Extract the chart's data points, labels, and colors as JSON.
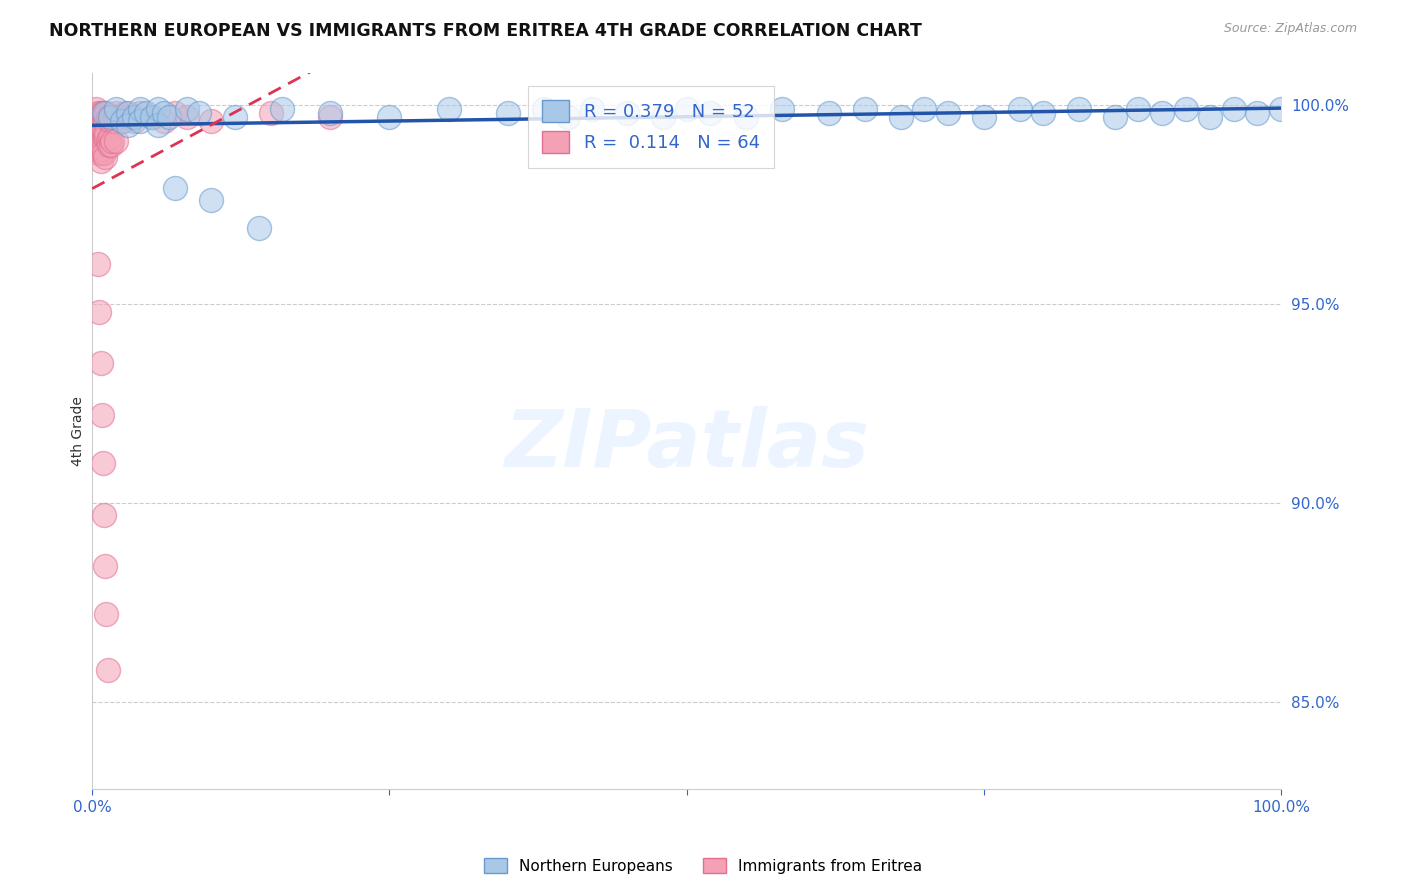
{
  "title": "NORTHERN EUROPEAN VS IMMIGRANTS FROM ERITREA 4TH GRADE CORRELATION CHART",
  "source": "Source: ZipAtlas.com",
  "ylabel": "4th Grade",
  "xlim": [
    0.0,
    1.0
  ],
  "ylim": [
    0.828,
    1.008
  ],
  "yticks": [
    0.85,
    0.9,
    0.95,
    1.0
  ],
  "ytick_labels": [
    "85.0%",
    "90.0%",
    "95.0%",
    "100.0%"
  ],
  "xticks": [
    0.0,
    0.25,
    0.5,
    0.75,
    1.0
  ],
  "xtick_labels": [
    "0.0%",
    "",
    "",
    "",
    "100.0%"
  ],
  "blue_R": 0.379,
  "blue_N": 52,
  "pink_R": 0.114,
  "pink_N": 64,
  "blue_color": "#A8C8E8",
  "pink_color": "#F4A0B5",
  "blue_edge_color": "#6699CC",
  "pink_edge_color": "#E07090",
  "blue_line_color": "#2255AA",
  "pink_line_color": "#DD3355",
  "legend1_label": "Northern Europeans",
  "legend2_label": "Immigrants from Eritrea",
  "watermark_text": "ZIPatlas",
  "blue_x": [
    0.01,
    0.015,
    0.02,
    0.025,
    0.03,
    0.03,
    0.035,
    0.04,
    0.04,
    0.045,
    0.05,
    0.055,
    0.055,
    0.06,
    0.065,
    0.07,
    0.08,
    0.09,
    0.1,
    0.12,
    0.14,
    0.16,
    0.2,
    0.25,
    0.3,
    0.35,
    0.38,
    0.4,
    0.42,
    0.45,
    0.48,
    0.5,
    0.52,
    0.55,
    0.58,
    0.62,
    0.65,
    0.68,
    0.7,
    0.72,
    0.75,
    0.78,
    0.8,
    0.83,
    0.86,
    0.88,
    0.9,
    0.92,
    0.94,
    0.96,
    0.98,
    1.0
  ],
  "blue_y": [
    0.998,
    0.997,
    0.999,
    0.996,
    0.998,
    0.995,
    0.997,
    0.999,
    0.996,
    0.998,
    0.997,
    0.999,
    0.995,
    0.998,
    0.997,
    0.979,
    0.999,
    0.998,
    0.976,
    0.997,
    0.969,
    0.999,
    0.998,
    0.997,
    0.999,
    0.998,
    0.999,
    0.997,
    0.999,
    0.998,
    0.997,
    0.999,
    0.998,
    0.997,
    0.999,
    0.998,
    0.999,
    0.997,
    0.999,
    0.998,
    0.997,
    0.999,
    0.998,
    0.999,
    0.997,
    0.999,
    0.998,
    0.999,
    0.997,
    0.999,
    0.998,
    0.999
  ],
  "pink_x": [
    0.003,
    0.004,
    0.004,
    0.005,
    0.005,
    0.005,
    0.005,
    0.006,
    0.006,
    0.006,
    0.007,
    0.007,
    0.007,
    0.007,
    0.008,
    0.008,
    0.008,
    0.009,
    0.009,
    0.009,
    0.01,
    0.01,
    0.01,
    0.011,
    0.011,
    0.011,
    0.012,
    0.012,
    0.013,
    0.013,
    0.014,
    0.014,
    0.015,
    0.015,
    0.016,
    0.016,
    0.017,
    0.017,
    0.018,
    0.019,
    0.02,
    0.02,
    0.022,
    0.025,
    0.028,
    0.03,
    0.035,
    0.04,
    0.05,
    0.06,
    0.07,
    0.08,
    0.1,
    0.15,
    0.2,
    0.005,
    0.006,
    0.007,
    0.008,
    0.009,
    0.01,
    0.011,
    0.012,
    0.013
  ],
  "pink_y": [
    0.999,
    0.997,
    0.994,
    0.998,
    0.995,
    0.991,
    0.988,
    0.997,
    0.993,
    0.989,
    0.998,
    0.994,
    0.99,
    0.986,
    0.997,
    0.993,
    0.988,
    0.998,
    0.994,
    0.989,
    0.997,
    0.993,
    0.988,
    0.996,
    0.992,
    0.987,
    0.998,
    0.993,
    0.997,
    0.991,
    0.996,
    0.99,
    0.997,
    0.992,
    0.996,
    0.99,
    0.997,
    0.991,
    0.996,
    0.997,
    0.998,
    0.991,
    0.997,
    0.996,
    0.998,
    0.997,
    0.996,
    0.998,
    0.997,
    0.996,
    0.998,
    0.997,
    0.996,
    0.998,
    0.997,
    0.96,
    0.948,
    0.935,
    0.922,
    0.91,
    0.897,
    0.884,
    0.872,
    0.858
  ]
}
